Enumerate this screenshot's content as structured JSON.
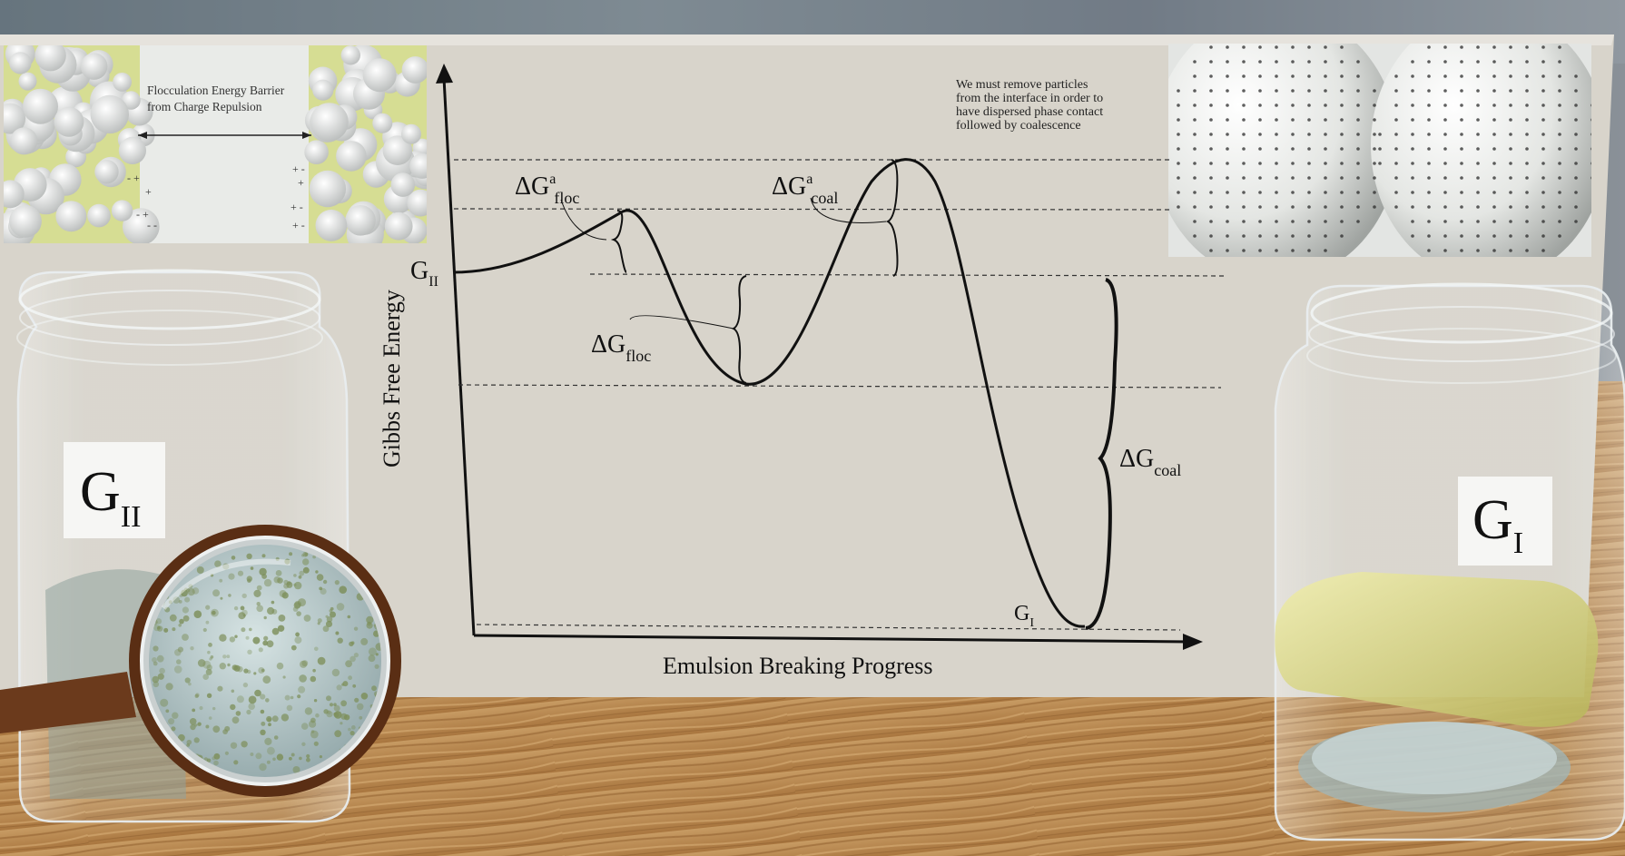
{
  "inset_left": {
    "caption_line1": "Flocculation Energy Barrier",
    "caption_line2": "from Charge Repulsion"
  },
  "inset_right": {
    "note_lines": [
      "We must remove particles",
      "from the interface in order to",
      "have dispersed phase contact",
      "followed by coalescence"
    ]
  },
  "diagram": {
    "y_axis_label": "Gibbs Free Energy",
    "x_axis_label": "Emulsion Breaking Progress",
    "labels": {
      "g_ii": {
        "main": "G",
        "sub": "II"
      },
      "g_i": {
        "main": "G",
        "sub": "I"
      },
      "dg_a_floc": {
        "main": "ΔG",
        "sup": "a",
        "sub": "floc"
      },
      "dg_a_coal": {
        "main": "ΔG",
        "sup": "a",
        "sub": "coal"
      },
      "dg_floc": {
        "main": "ΔG",
        "sub": "floc"
      },
      "dg_coal": {
        "main": "ΔG",
        "sub": "coal"
      }
    }
  },
  "jars": {
    "left_label": {
      "main": "G",
      "sub": "II"
    },
    "right_label": {
      "main": "G",
      "sub": "I"
    }
  },
  "colors": {
    "board": "#d9d5cc",
    "wood": "#b88c55",
    "ink": "#111111",
    "lens_frame": "#5a2e14",
    "yellow_green": "#b5c22a"
  }
}
